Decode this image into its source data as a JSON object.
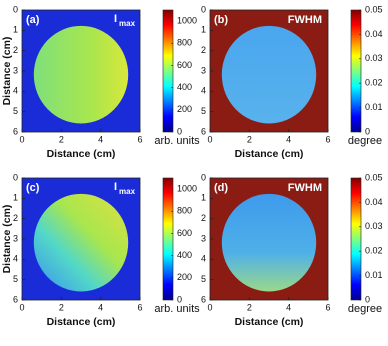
{
  "chart_data": [
    {
      "type": "heatmap",
      "panel_label": "(a)",
      "title": "I",
      "title_subscript": "max",
      "xlabel": "Distance (cm)",
      "ylabel": "Distance (cm)",
      "xlim": [
        0,
        6
      ],
      "xticks": [
        0,
        2,
        4,
        6
      ],
      "ylim": [
        0,
        6
      ],
      "yticks": [
        0,
        1,
        2,
        3,
        4,
        5,
        6
      ],
      "y_inverted": true,
      "colormap": "jet",
      "colorbar": {
        "label": "arb. units",
        "lim": [
          0,
          1100
        ],
        "ticks": [
          0,
          200,
          400,
          600,
          800,
          1000
        ]
      }
    },
    {
      "type": "heatmap",
      "panel_label": "(b)",
      "title": "FWHM",
      "xlabel": "Distance (cm)",
      "xlim": [
        0,
        6
      ],
      "xticks": [
        0,
        2,
        4,
        6
      ],
      "ylim": [
        0,
        6
      ],
      "yticks": [
        0,
        1,
        2,
        3,
        4,
        5,
        6
      ],
      "y_inverted": true,
      "colormap": "jet",
      "colorbar": {
        "label": "degree",
        "lim": [
          0,
          0.05
        ],
        "ticks": [
          0,
          0.01,
          0.02,
          0.03,
          0.04,
          0.05
        ]
      }
    },
    {
      "type": "heatmap",
      "panel_label": "(c)",
      "title": "I",
      "title_subscript": "max",
      "xlabel": "Distance (cm)",
      "ylabel": "Distance (cm)",
      "xlim": [
        0,
        6
      ],
      "xticks": [
        0,
        2,
        4,
        6
      ],
      "ylim": [
        0,
        6
      ],
      "yticks": [
        0,
        1,
        2,
        3,
        4,
        5,
        6
      ],
      "y_inverted": true,
      "colormap": "jet",
      "colorbar": {
        "label": "arb. units",
        "lim": [
          0,
          1100
        ],
        "ticks": [
          0,
          200,
          400,
          600,
          800,
          1000
        ]
      }
    },
    {
      "type": "heatmap",
      "panel_label": "(d)",
      "title": "FWHM",
      "xlabel": "Distance (cm)",
      "xlim": [
        0,
        6
      ],
      "xticks": [
        0,
        2,
        4,
        6
      ],
      "ylim": [
        0,
        6
      ],
      "yticks": [
        0,
        1,
        2,
        3,
        4,
        5,
        6
      ],
      "y_inverted": true,
      "colormap": "jet",
      "colorbar": {
        "label": "degree",
        "lim": [
          0,
          0.05
        ],
        "ticks": [
          0,
          0.01,
          0.02,
          0.03,
          0.04,
          0.05
        ]
      }
    }
  ]
}
